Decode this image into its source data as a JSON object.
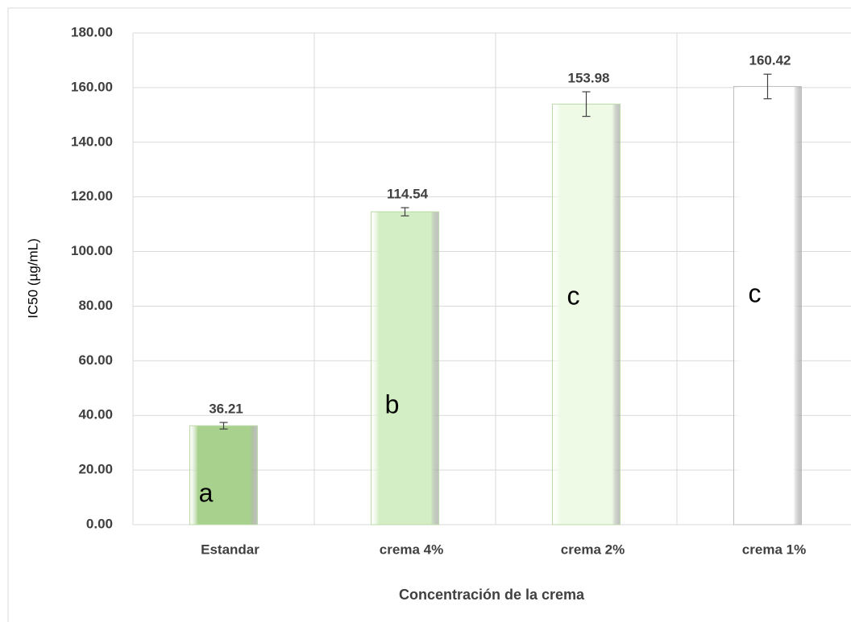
{
  "chart_data": {
    "type": "bar",
    "x_label": "Concentración de la crema",
    "y_label": "IC50 (µg/mL)",
    "categories": [
      "Estandar",
      "crema 4%",
      "crema 2%",
      "crema 1%"
    ],
    "values": [
      36.21,
      114.54,
      153.98,
      160.42
    ],
    "errors": [
      1.2,
      1.5,
      4.5,
      4.5
    ],
    "annotations": [
      "a",
      "b",
      "c",
      "c"
    ],
    "colors": [
      "#a9d18e",
      "#d3edc4",
      "#eefae6",
      "#ffffff"
    ],
    "ylim": [
      0,
      180
    ],
    "yticks": [
      {
        "value": 0,
        "label": "0.00"
      },
      {
        "value": 20,
        "label": "20.00"
      },
      {
        "value": 40,
        "label": "40.00"
      },
      {
        "value": 60,
        "label": "60.00"
      },
      {
        "value": 80,
        "label": "80.00"
      },
      {
        "value": 100,
        "label": "100.00"
      },
      {
        "value": 120,
        "label": "120.00"
      },
      {
        "value": 140,
        "label": "140.00"
      },
      {
        "value": 160,
        "label": "160.00"
      },
      {
        "value": 180,
        "label": "180.00"
      }
    ],
    "grid": true
  }
}
